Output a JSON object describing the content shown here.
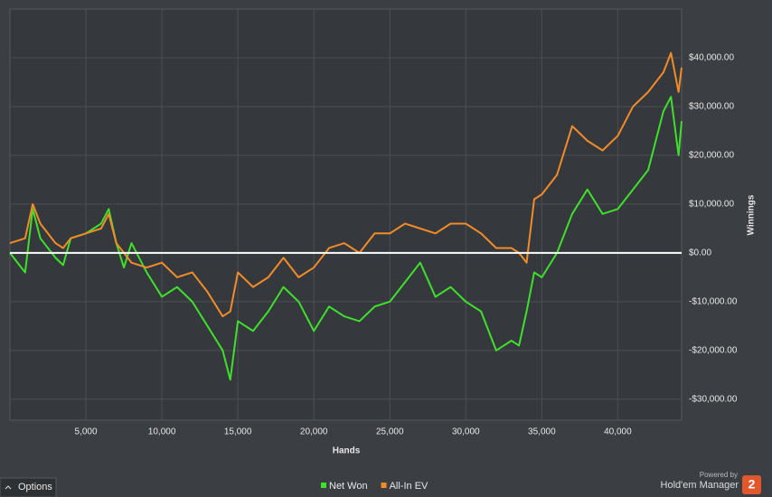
{
  "chart_data": {
    "type": "line",
    "x_label": "Hands",
    "y_label": "Winnings",
    "x": [
      0,
      1000,
      1500,
      2000,
      3000,
      3500,
      4000,
      5000,
      6000,
      6500,
      7000,
      7500,
      8000,
      9000,
      10000,
      11000,
      12000,
      13000,
      14000,
      14500,
      15000,
      16000,
      17000,
      18000,
      19000,
      20000,
      21000,
      22000,
      23000,
      24000,
      25000,
      26000,
      27000,
      28000,
      29000,
      30000,
      31000,
      32000,
      33000,
      33500,
      34000,
      34500,
      35000,
      36000,
      37000,
      38000,
      39000,
      40000,
      41000,
      42000,
      43000,
      43500,
      44000,
      44200
    ],
    "series": [
      {
        "name": "Net Won",
        "color": "#3ee02c",
        "values": [
          0,
          -4000,
          9000,
          3000,
          -1000,
          -2500,
          3000,
          4000,
          6000,
          9000,
          2000,
          -3000,
          2000,
          -4000,
          -9000,
          -7000,
          -10000,
          -15000,
          -20000,
          -26000,
          -14000,
          -16000,
          -12000,
          -7000,
          -10000,
          -16000,
          -11000,
          -13000,
          -14000,
          -11000,
          -10000,
          -6000,
          -2000,
          -9000,
          -7000,
          -10000,
          -12000,
          -20000,
          -18000,
          -19000,
          -12000,
          -4000,
          -5000,
          0,
          8000,
          13000,
          8000,
          9000,
          13000,
          17000,
          29000,
          32000,
          20000,
          27000
        ]
      },
      {
        "name": "All-In EV",
        "color": "#f28c28",
        "values": [
          2000,
          3000,
          10000,
          6000,
          2000,
          1000,
          3000,
          4000,
          5000,
          8000,
          2000,
          0,
          -2000,
          -3000,
          -2000,
          -5000,
          -4000,
          -8000,
          -13000,
          -12000,
          -4000,
          -7000,
          -5000,
          -1000,
          -5000,
          -3000,
          1000,
          2000,
          0,
          4000,
          4000,
          6000,
          5000,
          4000,
          6000,
          6000,
          4000,
          1000,
          1000,
          0,
          -2000,
          11000,
          12000,
          16000,
          26000,
          23000,
          21000,
          24000,
          30000,
          33000,
          37000,
          41000,
          33000,
          38000
        ]
      }
    ],
    "xlim": [
      0,
      44200
    ],
    "ylim": [
      -34300,
      50000
    ],
    "xticks": [
      {
        "value": 5000,
        "label": "5,000"
      },
      {
        "value": 10000,
        "label": "10,000"
      },
      {
        "value": 15000,
        "label": "15,000"
      },
      {
        "value": 20000,
        "label": "20,000"
      },
      {
        "value": 25000,
        "label": "25,000"
      },
      {
        "value": 30000,
        "label": "30,000"
      },
      {
        "value": 35000,
        "label": "35,000"
      },
      {
        "value": 40000,
        "label": "40,000"
      }
    ],
    "yticks": [
      {
        "value": -30000,
        "label": "-$30,000.00"
      },
      {
        "value": -20000,
        "label": "-$20,000.00"
      },
      {
        "value": -10000,
        "label": "-$10,000.00"
      },
      {
        "value": 0,
        "label": "$0.00"
      },
      {
        "value": 10000,
        "label": "$10,000.00"
      },
      {
        "value": 20000,
        "label": "$20,000.00"
      },
      {
        "value": 30000,
        "label": "$30,000.00"
      },
      {
        "value": 40000,
        "label": "$40,000.00"
      }
    ],
    "grid": true,
    "legend": "bottom"
  },
  "ui": {
    "options": "Options",
    "powered_by": "Powered by",
    "brand": "Hold'em Manager",
    "logo": "2"
  }
}
